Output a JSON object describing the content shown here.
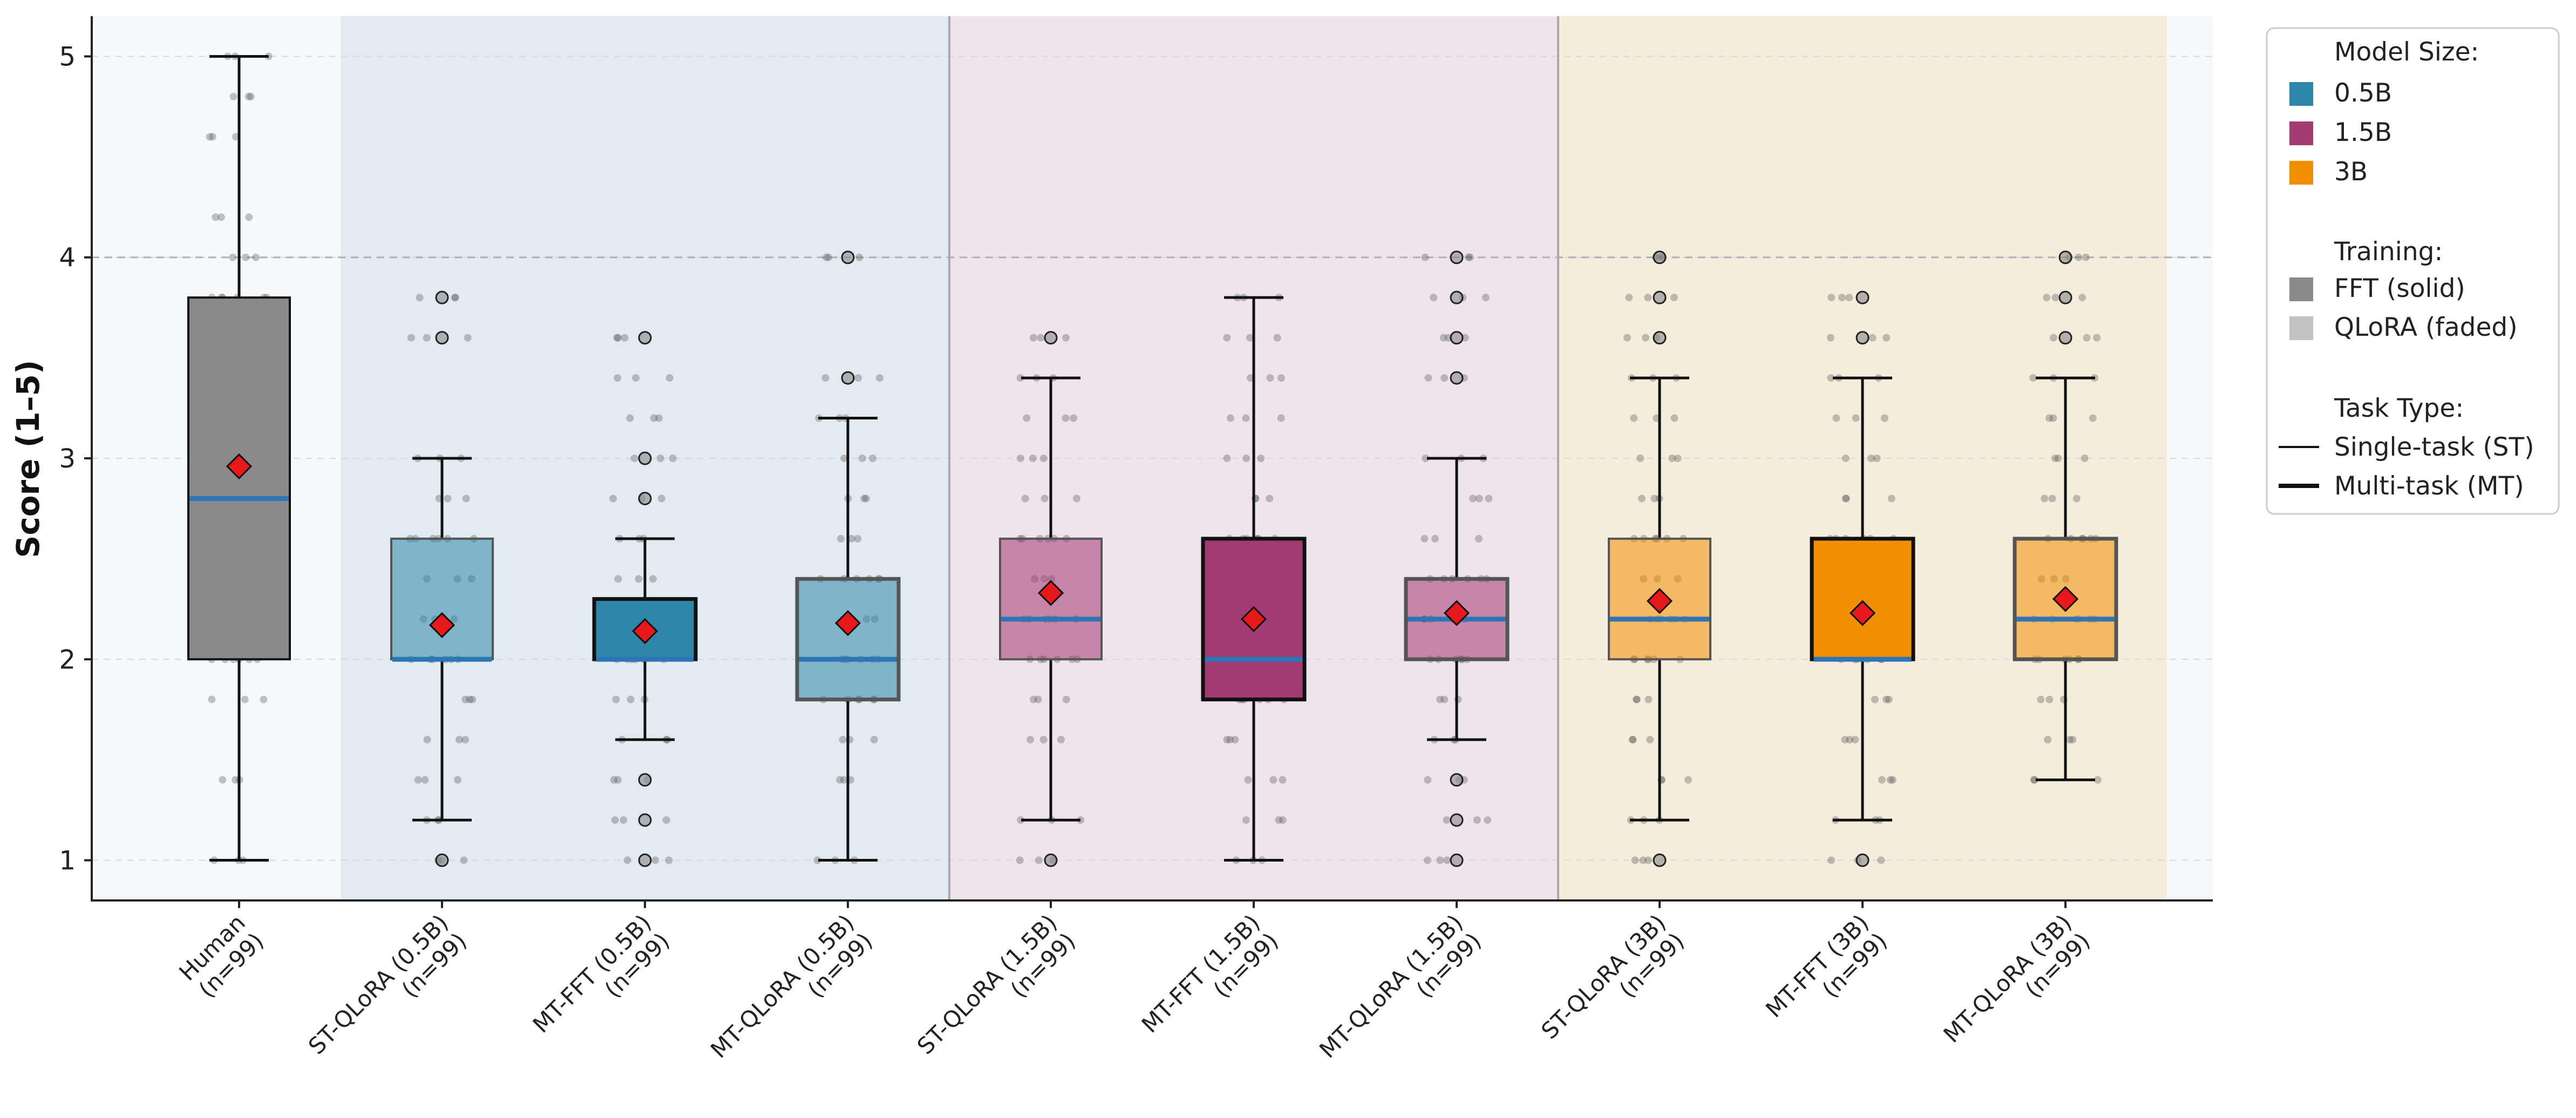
{
  "chart_data": {
    "type": "box",
    "title": "",
    "ylabel": "Score (1–5)",
    "ylim": [
      0.8,
      5.2
    ],
    "yticks": [
      1,
      2,
      3,
      4,
      5
    ],
    "reference_line": 4,
    "grid": "horizontal dashed",
    "legend_position": "outside-right",
    "groups": [
      {
        "name": "Human",
        "start": 0,
        "end": 0,
        "color": "#f6f8fa"
      },
      {
        "name": "0.5B",
        "start": 1,
        "end": 3,
        "color": "#e2ebf1"
      },
      {
        "name": "1.5B",
        "start": 4,
        "end": 6,
        "color": "#efe3ec"
      },
      {
        "name": "3B",
        "start": 7,
        "end": 9,
        "color": "#f6ecdc"
      }
    ],
    "categories": [
      {
        "label": "Human",
        "n": "(n=99)",
        "min": 1.0,
        "q1": 2.0,
        "median": 2.8,
        "q3": 3.8,
        "max": 5.0,
        "mean": 2.96,
        "color": "#8a8a8a",
        "faded": false,
        "multitask": false,
        "outliers": [],
        "jitter_levels": [
          1.0,
          1.4,
          1.8,
          2.0,
          2.2,
          2.4,
          2.6,
          2.8,
          3.0,
          3.2,
          3.4,
          3.6,
          3.8,
          4.0,
          4.2,
          4.6,
          4.8,
          5.0
        ]
      },
      {
        "label": "ST-QLoRA (0.5B)",
        "n": "(n=99)",
        "min": 1.2,
        "q1": 2.0,
        "median": 2.0,
        "q3": 2.6,
        "max": 3.0,
        "mean": 2.17,
        "color": "#2e86ab",
        "faded": true,
        "multitask": false,
        "outliers": [
          1.0,
          3.6,
          3.8
        ],
        "jitter_levels": [
          1.0,
          1.2,
          1.4,
          1.6,
          1.8,
          2.0,
          2.2,
          2.4,
          2.6,
          2.8,
          3.0,
          3.6,
          3.8
        ]
      },
      {
        "label": "MT-FFT (0.5B)",
        "n": "(n=99)",
        "min": 1.6,
        "q1": 2.0,
        "median": 2.0,
        "q3": 2.3,
        "max": 2.6,
        "mean": 2.14,
        "color": "#2e86ab",
        "faded": false,
        "multitask": true,
        "outliers": [
          1.0,
          1.2,
          1.4,
          2.8,
          3.0,
          3.6
        ],
        "jitter_levels": [
          1.0,
          1.2,
          1.4,
          1.6,
          1.8,
          2.0,
          2.2,
          2.4,
          2.6,
          2.8,
          3.0,
          3.2,
          3.4,
          3.6
        ]
      },
      {
        "label": "MT-QLoRA (0.5B)",
        "n": "(n=99)",
        "min": 1.0,
        "q1": 1.8,
        "median": 2.0,
        "q3": 2.4,
        "max": 3.2,
        "mean": 2.18,
        "color": "#2e86ab",
        "faded": true,
        "multitask": true,
        "outliers": [
          3.4,
          4.0
        ],
        "jitter_levels": [
          1.0,
          1.4,
          1.6,
          1.8,
          2.0,
          2.2,
          2.4,
          2.6,
          2.8,
          3.0,
          3.2,
          3.4,
          4.0
        ]
      },
      {
        "label": "ST-QLoRA (1.5B)",
        "n": "(n=99)",
        "min": 1.2,
        "q1": 2.0,
        "median": 2.2,
        "q3": 2.6,
        "max": 3.4,
        "mean": 2.33,
        "color": "#a23b72",
        "faded": true,
        "multitask": false,
        "outliers": [
          1.0,
          3.6
        ],
        "jitter_levels": [
          1.0,
          1.2,
          1.6,
          1.8,
          2.0,
          2.2,
          2.4,
          2.6,
          2.8,
          3.0,
          3.2,
          3.4,
          3.6
        ]
      },
      {
        "label": "MT-FFT (1.5B)",
        "n": "(n=99)",
        "min": 1.0,
        "q1": 1.8,
        "median": 2.0,
        "q3": 2.6,
        "max": 3.8,
        "mean": 2.2,
        "color": "#a23b72",
        "faded": false,
        "multitask": true,
        "outliers": [],
        "jitter_levels": [
          1.0,
          1.2,
          1.4,
          1.6,
          1.8,
          2.0,
          2.2,
          2.4,
          2.6,
          2.8,
          3.0,
          3.2,
          3.4,
          3.6,
          3.8
        ]
      },
      {
        "label": "MT-QLoRA (1.5B)",
        "n": "(n=99)",
        "min": 1.6,
        "q1": 2.0,
        "median": 2.2,
        "q3": 2.4,
        "max": 3.0,
        "mean": 2.23,
        "color": "#a23b72",
        "faded": true,
        "multitask": true,
        "outliers": [
          1.0,
          1.2,
          1.4,
          3.4,
          3.6,
          3.8,
          4.0
        ],
        "jitter_levels": [
          1.0,
          1.2,
          1.4,
          1.6,
          1.8,
          2.0,
          2.2,
          2.4,
          2.6,
          2.8,
          3.0,
          3.4,
          3.6,
          3.8,
          4.0
        ]
      },
      {
        "label": "ST-QLoRA (3B)",
        "n": "(n=99)",
        "min": 1.2,
        "q1": 2.0,
        "median": 2.2,
        "q3": 2.6,
        "max": 3.4,
        "mean": 2.29,
        "color": "#f18f01",
        "faded": true,
        "multitask": false,
        "outliers": [
          1.0,
          3.6,
          3.8,
          4.0
        ],
        "jitter_levels": [
          1.0,
          1.2,
          1.4,
          1.6,
          1.8,
          2.0,
          2.2,
          2.4,
          2.6,
          2.8,
          3.0,
          3.2,
          3.4,
          3.6,
          3.8,
          4.0
        ]
      },
      {
        "label": "MT-FFT (3B)",
        "n": "(n=99)",
        "min": 1.2,
        "q1": 2.0,
        "median": 2.0,
        "q3": 2.6,
        "max": 3.4,
        "mean": 2.23,
        "color": "#f18f01",
        "faded": false,
        "multitask": true,
        "outliers": [
          1.0,
          3.6,
          3.8
        ],
        "jitter_levels": [
          1.0,
          1.2,
          1.4,
          1.6,
          1.8,
          2.0,
          2.2,
          2.4,
          2.6,
          2.8,
          3.0,
          3.2,
          3.4,
          3.6,
          3.8
        ]
      },
      {
        "label": "MT-QLoRA (3B)",
        "n": "(n=99)",
        "min": 1.4,
        "q1": 2.0,
        "median": 2.2,
        "q3": 2.6,
        "max": 3.4,
        "mean": 2.3,
        "color": "#f18f01",
        "faded": true,
        "multitask": true,
        "outliers": [
          3.6,
          3.8,
          4.0
        ],
        "jitter_levels": [
          1.4,
          1.6,
          1.8,
          2.0,
          2.2,
          2.4,
          2.6,
          2.8,
          3.0,
          3.2,
          3.4,
          3.6,
          3.8,
          4.0
        ]
      }
    ],
    "median_color": "#2e75b6",
    "mean_marker_color": "#e8191b",
    "legend": {
      "size_title": "Model Size:",
      "sizes": [
        {
          "label": "0.5B",
          "color": "#2e86ab"
        },
        {
          "label": "1.5B",
          "color": "#a23b72"
        },
        {
          "label": "3B",
          "color": "#f18f01"
        }
      ],
      "training_title": "Training:",
      "training": [
        {
          "label": "FFT (solid)",
          "color": "#8a8a8a"
        },
        {
          "label": "QLoRA (faded)",
          "color": "#c2c2c2"
        }
      ],
      "task_title": "Task Type:",
      "tasks": [
        {
          "label": "Single-task (ST)",
          "style": "thin"
        },
        {
          "label": "Multi-task (MT)",
          "style": "thick"
        }
      ]
    }
  }
}
